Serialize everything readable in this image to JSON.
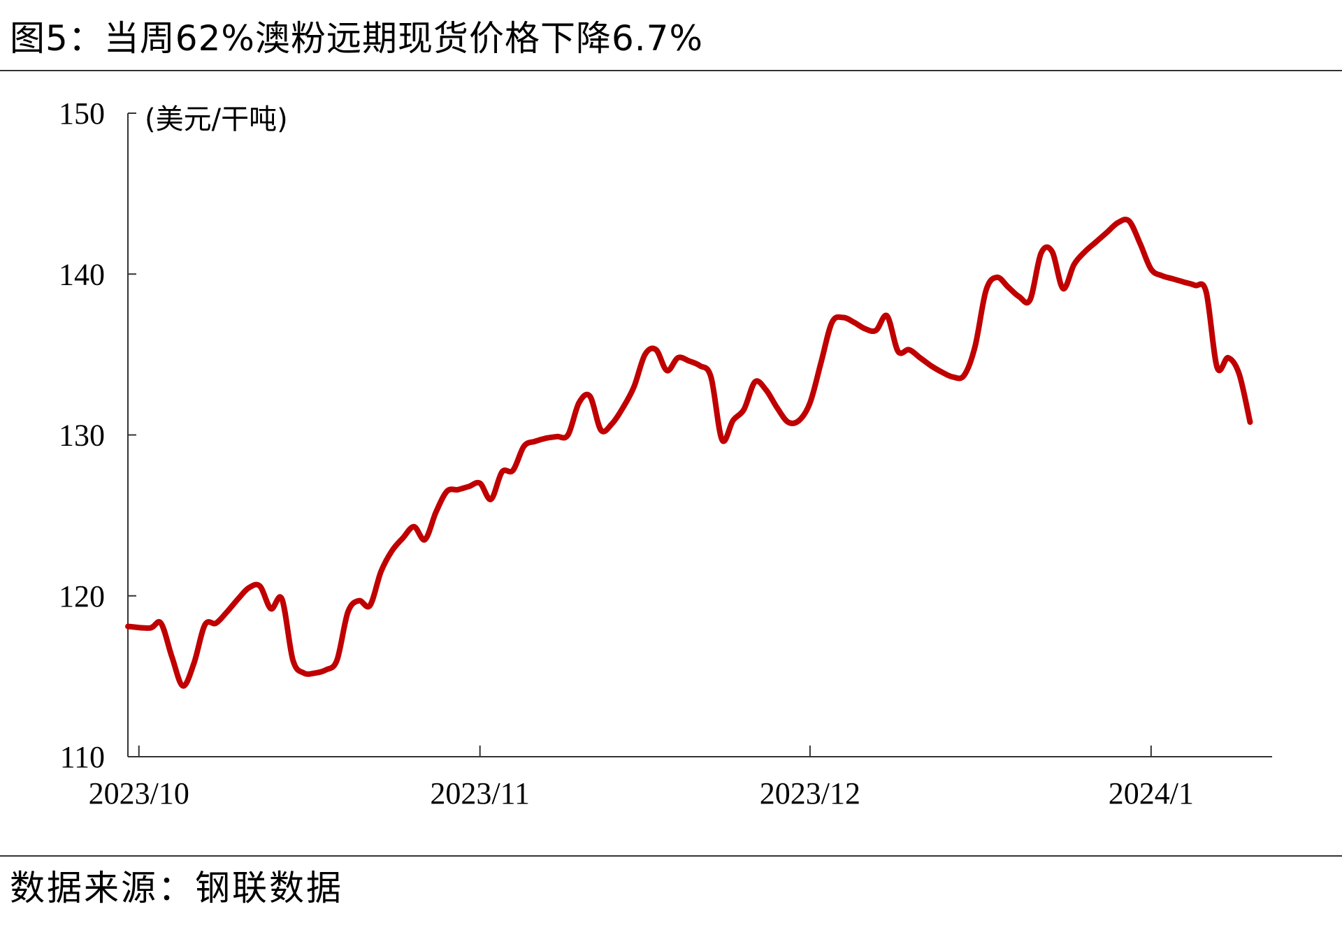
{
  "figure": {
    "title": "图5：当周62%澳粉远期现货价格下降6.7%",
    "source": "数据来源：钢联数据"
  },
  "colors": {
    "series": "#C00000",
    "axis": "#333333",
    "rule": "#333333"
  },
  "chart_data": {
    "type": "line",
    "title": "",
    "xlabel": "",
    "ylabel": "(美元/干吨)",
    "ylim": [
      110,
      150
    ],
    "yticks": [
      110,
      120,
      130,
      140,
      150
    ],
    "xlim": [
      "2023-09-30",
      "2024-01-12"
    ],
    "xticks": [
      {
        "date": "2023-10-01",
        "label": "2023/10"
      },
      {
        "date": "2023-11-01",
        "label": "2023/11"
      },
      {
        "date": "2023-12-01",
        "label": "2023/12"
      },
      {
        "date": "2024-01-01",
        "label": "2024/1"
      }
    ],
    "grid": false,
    "legend": "none",
    "series": [
      {
        "name": "",
        "color": "#C00000",
        "points": [
          [
            "2023-09-30",
            118.1
          ],
          [
            "2023-10-02",
            118.0
          ],
          [
            "2023-10-03",
            118.3
          ],
          [
            "2023-10-04",
            116.2
          ],
          [
            "2023-10-05",
            114.4
          ],
          [
            "2023-10-06",
            115.8
          ],
          [
            "2023-10-07",
            118.2
          ],
          [
            "2023-10-08",
            118.3
          ],
          [
            "2023-10-09",
            119.0
          ],
          [
            "2023-10-10",
            119.8
          ],
          [
            "2023-10-11",
            120.5
          ],
          [
            "2023-10-12",
            120.6
          ],
          [
            "2023-10-13",
            119.2
          ],
          [
            "2023-10-14",
            119.8
          ],
          [
            "2023-10-15",
            116.0
          ],
          [
            "2023-10-16",
            115.2
          ],
          [
            "2023-10-17",
            115.2
          ],
          [
            "2023-10-18",
            115.4
          ],
          [
            "2023-10-19",
            116.0
          ],
          [
            "2023-10-20",
            119.0
          ],
          [
            "2023-10-21",
            119.7
          ],
          [
            "2023-10-22",
            119.4
          ],
          [
            "2023-10-23",
            121.5
          ],
          [
            "2023-10-24",
            122.8
          ],
          [
            "2023-10-25",
            123.6
          ],
          [
            "2023-10-26",
            124.3
          ],
          [
            "2023-10-27",
            123.5
          ],
          [
            "2023-10-28",
            125.2
          ],
          [
            "2023-10-29",
            126.5
          ],
          [
            "2023-10-30",
            126.6
          ],
          [
            "2023-10-31",
            126.8
          ],
          [
            "2023-11-01",
            127.0
          ],
          [
            "2023-11-02",
            126.0
          ],
          [
            "2023-11-03",
            127.7
          ],
          [
            "2023-11-04",
            127.8
          ],
          [
            "2023-11-05",
            129.3
          ],
          [
            "2023-11-06",
            129.6
          ],
          [
            "2023-11-07",
            129.8
          ],
          [
            "2023-11-08",
            129.9
          ],
          [
            "2023-11-09",
            130.0
          ],
          [
            "2023-11-10",
            132.0
          ],
          [
            "2023-11-11",
            132.4
          ],
          [
            "2023-11-12",
            130.3
          ],
          [
            "2023-11-13",
            130.7
          ],
          [
            "2023-11-14",
            131.7
          ],
          [
            "2023-11-15",
            133.0
          ],
          [
            "2023-11-16",
            135.0
          ],
          [
            "2023-11-17",
            135.3
          ],
          [
            "2023-11-18",
            134.0
          ],
          [
            "2023-11-19",
            134.8
          ],
          [
            "2023-11-20",
            134.6
          ],
          [
            "2023-11-21",
            134.3
          ],
          [
            "2023-11-22",
            133.6
          ],
          [
            "2023-11-23",
            129.7
          ],
          [
            "2023-11-24",
            130.9
          ],
          [
            "2023-11-25",
            131.6
          ],
          [
            "2023-11-26",
            133.3
          ],
          [
            "2023-11-27",
            132.8
          ],
          [
            "2023-11-28",
            131.7
          ],
          [
            "2023-11-29",
            130.8
          ],
          [
            "2023-11-30",
            130.9
          ],
          [
            "2023-12-01",
            132.0
          ],
          [
            "2023-12-02",
            134.5
          ],
          [
            "2023-12-03",
            137.0
          ],
          [
            "2023-12-04",
            137.3
          ],
          [
            "2023-12-05",
            137.0
          ],
          [
            "2023-12-06",
            136.6
          ],
          [
            "2023-12-07",
            136.5
          ],
          [
            "2023-12-08",
            137.4
          ],
          [
            "2023-12-09",
            135.2
          ],
          [
            "2023-12-10",
            135.3
          ],
          [
            "2023-12-11",
            134.8
          ],
          [
            "2023-12-12",
            134.3
          ],
          [
            "2023-12-13",
            133.9
          ],
          [
            "2023-12-14",
            133.6
          ],
          [
            "2023-12-15",
            133.7
          ],
          [
            "2023-12-16",
            135.5
          ],
          [
            "2023-12-17",
            139.0
          ],
          [
            "2023-12-18",
            139.8
          ],
          [
            "2023-12-19",
            139.2
          ],
          [
            "2023-12-20",
            138.6
          ],
          [
            "2023-12-21",
            138.4
          ],
          [
            "2023-12-22",
            141.3
          ],
          [
            "2023-12-23",
            141.4
          ],
          [
            "2023-12-24",
            139.1
          ],
          [
            "2023-12-25",
            140.6
          ],
          [
            "2023-12-26",
            141.4
          ],
          [
            "2023-12-27",
            142.0
          ],
          [
            "2023-12-28",
            142.6
          ],
          [
            "2023-12-29",
            143.2
          ],
          [
            "2023-12-30",
            143.3
          ],
          [
            "2023-12-31",
            141.9
          ],
          [
            "2024-01-01",
            140.3
          ],
          [
            "2024-01-02",
            139.9
          ],
          [
            "2024-01-03",
            139.7
          ],
          [
            "2024-01-04",
            139.5
          ],
          [
            "2024-01-05",
            139.3
          ],
          [
            "2024-01-06",
            138.9
          ],
          [
            "2024-01-07",
            134.2
          ],
          [
            "2024-01-08",
            134.8
          ],
          [
            "2024-01-09",
            133.8
          ],
          [
            "2024-01-10",
            130.8
          ]
        ]
      }
    ]
  }
}
